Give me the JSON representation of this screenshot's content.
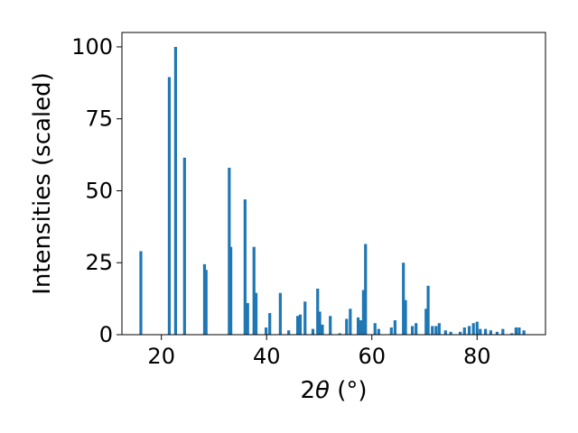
{
  "chart_data": {
    "type": "bar",
    "xlabel": "2θ (°)",
    "xlabel_parts": {
      "prefix": "2",
      "symbol": "θ",
      "unit": " (°)"
    },
    "ylabel": "Intensities (scaled)",
    "xlim": [
      12.5,
      93
    ],
    "ylim": [
      0,
      105
    ],
    "xticks": [
      20,
      40,
      60,
      80
    ],
    "yticks": [
      0,
      25,
      50,
      75,
      100
    ],
    "grid": false,
    "legend": "none",
    "bar_width_deg": 0.55,
    "color": "#1f77b4",
    "x": [
      16.1,
      21.5,
      22.7,
      24.4,
      28.2,
      28.5,
      32.9,
      33.2,
      35.9,
      36.4,
      37.6,
      38.0,
      39.9,
      40.6,
      42.6,
      44.2,
      45.9,
      46.4,
      47.3,
      48.8,
      49.7,
      50.1,
      50.6,
      52.1,
      53.9,
      55.2,
      55.9,
      57.4,
      57.9,
      58.4,
      58.8,
      60.6,
      61.3,
      63.7,
      64.4,
      66.0,
      66.4,
      67.7,
      68.4,
      70.3,
      70.7,
      71.5,
      72.2,
      72.8,
      74.0,
      75.0,
      76.8,
      77.6,
      78.5,
      79.3,
      80.0,
      80.6,
      81.6,
      82.6,
      83.8,
      84.9,
      86.6,
      87.4,
      88.0,
      88.9
    ],
    "values": [
      29,
      89.5,
      100,
      61.5,
      24.5,
      22.5,
      58,
      30.5,
      47,
      11,
      30.5,
      14.5,
      2.5,
      7.5,
      14.5,
      1.5,
      6.5,
      7,
      11.5,
      2,
      16,
      8,
      3.5,
      6.5,
      0.5,
      5.5,
      9,
      6,
      5,
      15.5,
      31.5,
      4,
      2,
      2.5,
      5,
      25,
      12,
      3,
      4,
      9,
      17,
      3,
      3,
      4,
      1.5,
      1,
      1,
      2.5,
      3,
      4,
      4.5,
      2,
      2,
      1.5,
      1,
      2,
      0.5,
      2.5,
      2.5,
      1.5
    ]
  }
}
